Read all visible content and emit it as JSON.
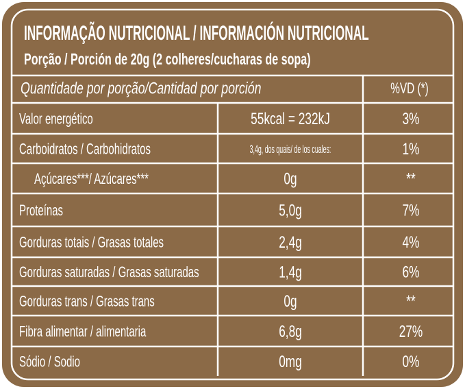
{
  "header": {
    "title": "INFORMAÇÃO NUTRICIONAL / INFORMACIÓN NUTRICIONAL",
    "subtitle": "Porção / Porción de 20g (2 colheres/cucharas de sopa)"
  },
  "table": {
    "header": [
      "Quantidade por porção/Cantidad por porción",
      "%VD (*)"
    ],
    "rows": [
      [
        "Valor energético",
        "55kcal = 232kJ",
        "3%"
      ],
      [
        "Carboidratos / Carbohidratos",
        "3,4g, dos quais/ de los cuales:",
        "1%"
      ],
      [
        "Açúcares***/ Azúcares***",
        "0g",
        "**"
      ],
      [
        "Proteínas",
        "5,0g",
        "7%"
      ],
      [
        "Gorduras totais / Grasas totales",
        "2,4g",
        "4%"
      ],
      [
        "Gorduras saturadas / Grasas saturadas",
        "1,4g",
        "6%"
      ],
      [
        "Gorduras trans / Grasas trans",
        "0g",
        "**"
      ],
      [
        "Fibra alimentar / alimentaria",
        "6,8g",
        "27%"
      ],
      [
        "Sódio / Sodio",
        "0mg",
        "0%"
      ]
    ]
  }
}
